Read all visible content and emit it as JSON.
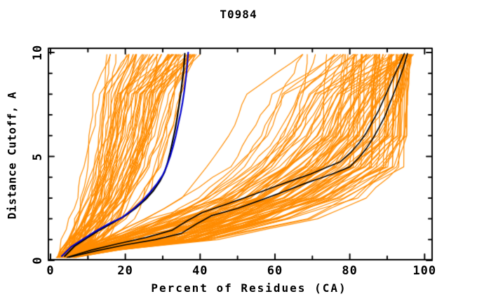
{
  "title": "T0984",
  "chart_data": {
    "type": "line",
    "title": "T0984",
    "xlabel": "Percent of Residues (CA)",
    "ylabel": "Distance Cutoff, A",
    "xlim": [
      0,
      100
    ],
    "ylim": [
      0,
      10
    ],
    "grid": false,
    "legend": false,
    "frame": "box-with-inward-ticks-all-sides",
    "x_ticks": {
      "major": [
        0,
        20,
        40,
        60,
        80,
        100
      ],
      "minor": [
        10,
        30,
        50,
        70,
        90
      ],
      "major_labels": [
        "0",
        "20",
        "40",
        "60",
        "80",
        "100"
      ]
    },
    "y_ticks": {
      "major": [
        0,
        5,
        10
      ],
      "minor": [
        1,
        2,
        3,
        4,
        6,
        7,
        8,
        9
      ],
      "major_labels": [
        "0",
        "5",
        "10"
      ]
    },
    "colors": {
      "background_models": "#FF8C00",
      "highlight_black": "#000000",
      "highlight_blue": "#0000CC",
      "frame": "#000000"
    },
    "series": [
      {
        "name": "black-model-right-lower",
        "color": "#000000",
        "width": 1.7,
        "points": [
          [
            5,
            0.15
          ],
          [
            12,
            0.45
          ],
          [
            20,
            0.75
          ],
          [
            28,
            1.0
          ],
          [
            35,
            1.3
          ],
          [
            39,
            1.75
          ],
          [
            43,
            2.15
          ],
          [
            50,
            2.5
          ],
          [
            57,
            2.95
          ],
          [
            63,
            3.35
          ],
          [
            68,
            3.7
          ],
          [
            72,
            3.95
          ],
          [
            76,
            4.2
          ],
          [
            80,
            4.5
          ],
          [
            82.5,
            4.95
          ],
          [
            84.5,
            5.4
          ],
          [
            86.3,
            5.9
          ],
          [
            88,
            6.45
          ],
          [
            89.3,
            6.9
          ],
          [
            90.6,
            7.5
          ],
          [
            92,
            8.15
          ],
          [
            93.3,
            8.75
          ],
          [
            94.4,
            9.3
          ],
          [
            95.4,
            9.95
          ]
        ]
      },
      {
        "name": "black-model-right-upper",
        "color": "#000000",
        "width": 1.7,
        "points": [
          [
            4.5,
            0.15
          ],
          [
            11,
            0.5
          ],
          [
            18,
            0.8
          ],
          [
            25.5,
            1.1
          ],
          [
            32.5,
            1.45
          ],
          [
            36.5,
            1.9
          ],
          [
            40.5,
            2.3
          ],
          [
            47,
            2.7
          ],
          [
            54,
            3.15
          ],
          [
            60,
            3.55
          ],
          [
            65.5,
            3.9
          ],
          [
            69.5,
            4.15
          ],
          [
            73.5,
            4.45
          ],
          [
            77.5,
            4.75
          ],
          [
            80.3,
            5.2
          ],
          [
            82.5,
            5.65
          ],
          [
            84.3,
            6.1
          ],
          [
            86,
            6.65
          ],
          [
            87.7,
            7.2
          ],
          [
            89.2,
            7.8
          ],
          [
            90.7,
            8.4
          ],
          [
            92.2,
            9.0
          ],
          [
            93.5,
            9.5
          ],
          [
            94.6,
            9.95
          ]
        ]
      },
      {
        "name": "black-model-left",
        "color": "#000000",
        "width": 2.2,
        "points": [
          [
            3.8,
            0.2
          ],
          [
            6.5,
            0.7
          ],
          [
            9.5,
            1.05
          ],
          [
            13,
            1.45
          ],
          [
            16.5,
            1.8
          ],
          [
            20,
            2.15
          ],
          [
            23,
            2.55
          ],
          [
            25.5,
            2.95
          ],
          [
            27.5,
            3.35
          ],
          [
            29.2,
            3.8
          ],
          [
            30.5,
            4.25
          ],
          [
            31.3,
            4.7
          ],
          [
            32,
            5.2
          ],
          [
            32.6,
            5.7
          ],
          [
            33.2,
            6.2
          ],
          [
            33.8,
            6.8
          ],
          [
            34.3,
            7.4
          ],
          [
            34.8,
            8.0
          ],
          [
            35.2,
            8.6
          ],
          [
            35.6,
            9.2
          ],
          [
            35.9,
            9.95
          ]
        ]
      },
      {
        "name": "blue-model",
        "color": "#0000CC",
        "width": 2.2,
        "points": [
          [
            3,
            0.2
          ],
          [
            5.5,
            0.65
          ],
          [
            8.5,
            1.0
          ],
          [
            12,
            1.4
          ],
          [
            15.5,
            1.75
          ],
          [
            19,
            2.05
          ],
          [
            22,
            2.45
          ],
          [
            24.5,
            2.85
          ],
          [
            26.5,
            3.25
          ],
          [
            28.5,
            3.7
          ],
          [
            30,
            4.1
          ],
          [
            31,
            4.5
          ],
          [
            32,
            5.0
          ],
          [
            32.8,
            5.5
          ],
          [
            33.5,
            6.0
          ],
          [
            34.2,
            6.6
          ],
          [
            34.8,
            7.1
          ],
          [
            35.3,
            7.6
          ],
          [
            35.8,
            8.2
          ],
          [
            36.2,
            8.8
          ],
          [
            36.5,
            9.3
          ],
          [
            36.8,
            10.0
          ]
        ]
      }
    ],
    "orange_models": {
      "note": "estimated background prediction curves, two clusters",
      "color": "#FF8C00",
      "width": 1.2,
      "seed": 42,
      "start_x_range": [
        1.5,
        7
      ],
      "curve_y_nodes": [
        0.25,
        1,
        2,
        3,
        4.5,
        6,
        8,
        9.9
      ],
      "clusters": [
        {
          "name": "left-cluster",
          "count": 62,
          "xtop_min": 11,
          "xtop_range": 29,
          "xtop_pow": 0.5,
          "increments": [
            [
              0.05,
              0.33
            ],
            [
              0.06,
              0.24
            ],
            [
              0.06,
              0.2
            ],
            [
              0.06,
              0.17
            ],
            [
              0.05,
              0.14
            ],
            [
              0.04,
              0.11
            ]
          ]
        },
        {
          "name": "right-cluster",
          "count": 92,
          "xtop_min": 55,
          "xtop_range": 42,
          "xtop_pow": 0.35,
          "increments": [
            [
              0.12,
              0.45
            ],
            [
              0.12,
              0.32
            ],
            [
              0.1,
              0.24
            ],
            [
              0.1,
              0.2
            ],
            [
              0.07,
              0.13
            ],
            [
              0.05,
              0.09
            ]
          ]
        }
      ]
    }
  }
}
